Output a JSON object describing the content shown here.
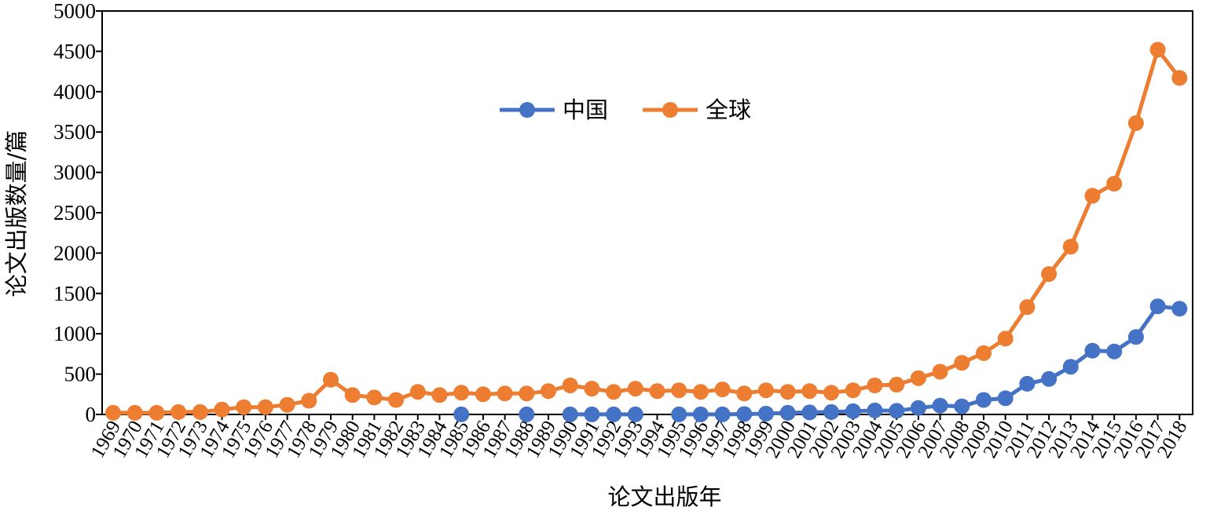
{
  "chart_data": {
    "type": "line",
    "xlabel": "论文出版年",
    "ylabel": "论文出版数量/篇",
    "ylim": [
      0,
      5000
    ],
    "yticks": [
      0,
      500,
      1000,
      1500,
      2000,
      2500,
      3000,
      3500,
      4000,
      4500,
      5000
    ],
    "legend": "top-center",
    "grid": false,
    "categories": [
      "1969",
      "1970",
      "1971",
      "1972",
      "1973",
      "1974",
      "1975",
      "1976",
      "1977",
      "1978",
      "1979",
      "1980",
      "1981",
      "1982",
      "1983",
      "1984",
      "1985",
      "1986",
      "1987",
      "1988",
      "1989",
      "1990",
      "1991",
      "1992",
      "1993",
      "1994",
      "1995",
      "1996",
      "1997",
      "1998",
      "1999",
      "2000",
      "2001",
      "2002",
      "2003",
      "2004",
      "2005",
      "2006",
      "2007",
      "2008",
      "2009",
      "2010",
      "2011",
      "2012",
      "2013",
      "2014",
      "2015",
      "2016",
      "2017",
      "2018"
    ],
    "series": [
      {
        "name": "中国",
        "color": "#4472C4",
        "values": [
          null,
          null,
          null,
          null,
          null,
          null,
          null,
          null,
          null,
          null,
          null,
          null,
          null,
          null,
          null,
          null,
          1,
          null,
          null,
          1,
          null,
          1,
          1,
          1,
          1,
          null,
          1,
          1,
          1,
          5,
          10,
          20,
          25,
          30,
          40,
          50,
          45,
          80,
          110,
          100,
          180,
          200,
          380,
          440,
          590,
          790,
          780,
          960,
          1340,
          1310
        ]
      },
      {
        "name": "全球",
        "color": "#ED7D31",
        "values": [
          20,
          20,
          20,
          30,
          30,
          60,
          90,
          90,
          120,
          170,
          430,
          240,
          210,
          180,
          280,
          240,
          270,
          250,
          260,
          260,
          290,
          360,
          320,
          280,
          320,
          290,
          300,
          280,
          310,
          260,
          300,
          280,
          290,
          270,
          300,
          360,
          370,
          450,
          530,
          640,
          760,
          940,
          1330,
          1740,
          2080,
          2710,
          2860,
          3610,
          4520,
          4170
        ]
      }
    ]
  }
}
